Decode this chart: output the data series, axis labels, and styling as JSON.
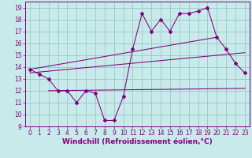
{
  "xlabel": "Windchill (Refroidissement éolien,°C)",
  "bg_color": "#c8eaea",
  "line_color": "#800080",
  "grid_color": "#a0cccc",
  "xlim": [
    -0.5,
    23.5
  ],
  "ylim": [
    9,
    19.5
  ],
  "xticks": [
    0,
    1,
    2,
    3,
    4,
    5,
    6,
    7,
    8,
    9,
    10,
    11,
    12,
    13,
    14,
    15,
    16,
    17,
    18,
    19,
    20,
    21,
    22,
    23
  ],
  "yticks": [
    9,
    10,
    11,
    12,
    13,
    14,
    15,
    16,
    17,
    18,
    19
  ],
  "zigzag_x": [
    0,
    1,
    2,
    3,
    4,
    5,
    6,
    7,
    8,
    9,
    10,
    11,
    12,
    13,
    14,
    15,
    16,
    17,
    18,
    19,
    20,
    21,
    22,
    23
  ],
  "zigzag_y": [
    13.8,
    13.4,
    13.0,
    12.0,
    12.0,
    11.0,
    12.0,
    11.8,
    9.5,
    9.5,
    11.5,
    15.5,
    18.5,
    17.0,
    18.0,
    17.0,
    18.5,
    18.5,
    18.7,
    19.0,
    16.5,
    15.5,
    14.3,
    13.5
  ],
  "upper_line_x": [
    0,
    20
  ],
  "upper_line_y": [
    13.8,
    16.5
  ],
  "middle_line_x": [
    0,
    23
  ],
  "middle_line_y": [
    13.5,
    15.2
  ],
  "lower_line_x": [
    2,
    23
  ],
  "lower_line_y": [
    12.0,
    12.2
  ],
  "font_color": "#800080",
  "xlabel_fontsize": 6.5,
  "tick_fontsize": 5.5
}
